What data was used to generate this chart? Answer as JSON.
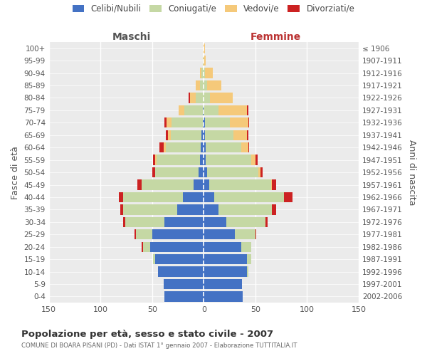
{
  "age_groups": [
    "0-4",
    "5-9",
    "10-14",
    "15-19",
    "20-24",
    "25-29",
    "30-34",
    "35-39",
    "40-44",
    "45-49",
    "50-54",
    "55-59",
    "60-64",
    "65-69",
    "70-74",
    "75-79",
    "80-84",
    "85-89",
    "90-94",
    "95-99",
    "100+"
  ],
  "birth_years": [
    "2002-2006",
    "1997-2001",
    "1992-1996",
    "1987-1991",
    "1982-1986",
    "1977-1981",
    "1972-1976",
    "1967-1971",
    "1962-1966",
    "1957-1961",
    "1952-1956",
    "1947-1951",
    "1942-1946",
    "1937-1941",
    "1932-1936",
    "1927-1931",
    "1922-1926",
    "1917-1921",
    "1912-1916",
    "1907-1911",
    "≤ 1906"
  ],
  "maschi": {
    "celibi": [
      38,
      39,
      44,
      47,
      52,
      50,
      38,
      26,
      20,
      10,
      5,
      4,
      3,
      2,
      1,
      1,
      0,
      0,
      0,
      0,
      0
    ],
    "coniugati": [
      0,
      0,
      0,
      2,
      7,
      16,
      38,
      52,
      58,
      50,
      42,
      42,
      34,
      30,
      30,
      18,
      8,
      4,
      2,
      1,
      0
    ],
    "vedovi": [
      0,
      0,
      0,
      0,
      0,
      0,
      0,
      0,
      0,
      0,
      0,
      1,
      2,
      3,
      5,
      5,
      5,
      4,
      2,
      0,
      0
    ],
    "divorziati": [
      0,
      0,
      0,
      0,
      1,
      1,
      2,
      3,
      4,
      4,
      3,
      2,
      4,
      2,
      2,
      0,
      2,
      0,
      0,
      0,
      0
    ]
  },
  "femmine": {
    "nubili": [
      38,
      37,
      42,
      42,
      36,
      30,
      22,
      14,
      10,
      5,
      3,
      2,
      2,
      1,
      1,
      0,
      0,
      0,
      0,
      0,
      0
    ],
    "coniugate": [
      0,
      0,
      1,
      4,
      10,
      20,
      38,
      52,
      68,
      60,
      50,
      44,
      34,
      28,
      24,
      14,
      6,
      3,
      1,
      0,
      0
    ],
    "vedove": [
      0,
      0,
      0,
      0,
      0,
      0,
      0,
      0,
      0,
      1,
      2,
      4,
      7,
      13,
      18,
      28,
      22,
      14,
      8,
      2,
      1
    ],
    "divorziate": [
      0,
      0,
      0,
      0,
      0,
      1,
      2,
      4,
      8,
      4,
      2,
      2,
      1,
      1,
      1,
      1,
      0,
      0,
      0,
      0,
      0
    ]
  },
  "colors": {
    "celibi_nubili": "#4472c4",
    "coniugati": "#c5d8a4",
    "vedovi": "#f5c97a",
    "divorziati": "#cc2222"
  },
  "xlim": 150,
  "title": "Popolazione per età, sesso e stato civile - 2007",
  "subtitle": "COMUNE DI BOARA PISANI (PD) - Dati ISTAT 1° gennaio 2007 - Elaborazione TUTTITALIA.IT",
  "ylabel_left": "Fasce di età",
  "ylabel_right": "Anni di nascita",
  "xlabel_maschi": "Maschi",
  "xlabel_femmine": "Femmine",
  "legend_labels": [
    "Celibi/Nubili",
    "Coniugati/e",
    "Vedovi/e",
    "Divorziati/e"
  ],
  "background_color": "#ffffff",
  "plot_bg": "#ebebeb",
  "grid_color": "#ffffff",
  "label_color": "#555555",
  "femmine_color": "#bb3333"
}
